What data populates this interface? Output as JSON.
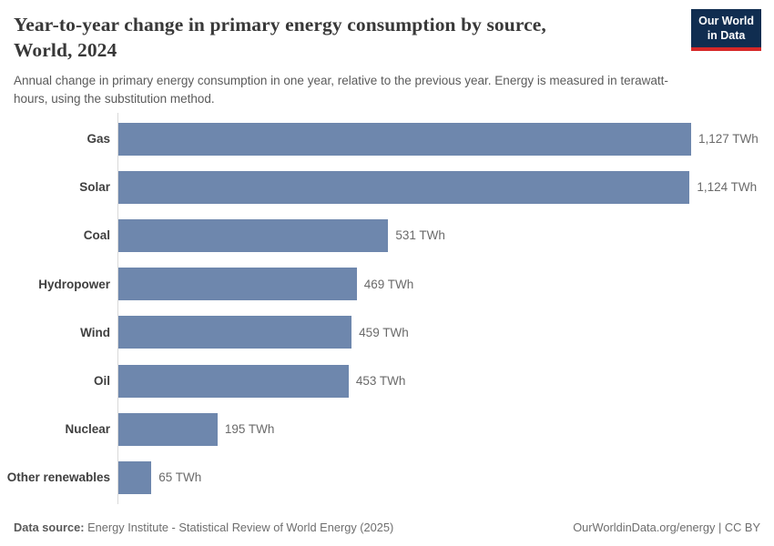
{
  "header": {
    "title_line1": "Year-to-year change in primary energy consumption by source,",
    "title_line2": "World, 2024",
    "subtitle": "Annual change in primary energy consumption in one year, relative to the previous year. Energy is measured in terawatt-hours, using the substitution method.",
    "logo": {
      "line1": "Our World",
      "line2": "in Data"
    }
  },
  "footer": {
    "data_source_label": "Data source:",
    "data_source_text": " Energy Institute - Statistical Review of World Energy (2025)",
    "link_text": "OurWorldinData.org/energy | CC BY"
  },
  "colors": {
    "bar": "#6e87ad",
    "logo_bg": "#102d50",
    "logo_red": "#d62828",
    "axis": "#d9d9d9"
  },
  "chart_data": {
    "type": "bar",
    "orientation": "horizontal",
    "title": "Year-to-year change in primary energy consumption by source, World, 2024",
    "subtitle": "Annual change in primary energy consumption in one year, relative to the previous year. Energy is measured in terawatt-hours, using the substitution method.",
    "categories": [
      "Gas",
      "Solar",
      "Coal",
      "Hydropower",
      "Wind",
      "Oil",
      "Nuclear",
      "Other renewables"
    ],
    "values": [
      1127,
      1124,
      531,
      469,
      459,
      453,
      195,
      65
    ],
    "value_labels": [
      "1,127 TWh",
      "1,124 TWh",
      "531 TWh",
      "469 TWh",
      "459 TWh",
      "453 TWh",
      "195 TWh",
      "65 TWh"
    ],
    "unit": "TWh",
    "xlim": [
      0,
      1127
    ],
    "grid": false,
    "legend": false
  }
}
